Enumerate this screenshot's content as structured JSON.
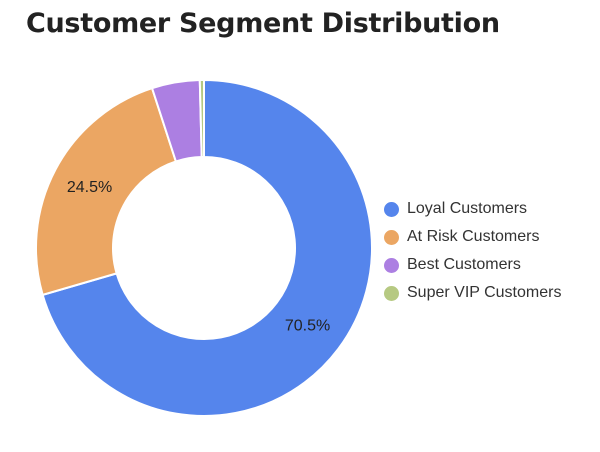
{
  "chart_data": {
    "type": "pie",
    "title": "Customer Segment Distribution",
    "donut": true,
    "categories": [
      "Loyal Customers",
      "At Risk Customers",
      "Best Customers",
      "Super VIP Customers"
    ],
    "values": [
      70.5,
      24.5,
      4.6,
      0.4
    ],
    "colors": [
      "#5585ec",
      "#eba663",
      "#ac7fe2",
      "#b6c982"
    ],
    "data_labels": [
      "70.5%",
      "24.5%",
      "",
      ""
    ],
    "legend_position": "right"
  }
}
